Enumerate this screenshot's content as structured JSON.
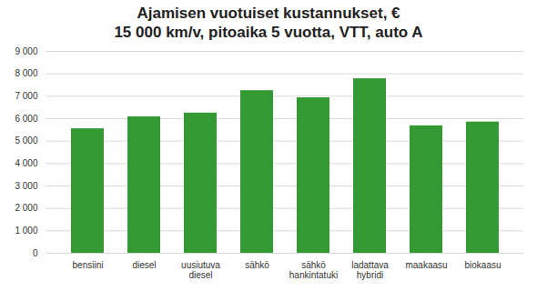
{
  "chart_data": {
    "type": "bar",
    "title": [
      "Ajamisen vuotuiset kustannukset, €",
      "15 000 km/v, pitoaika 5 vuotta, VTT, auto A"
    ],
    "categories": [
      "bensiini",
      "diesel",
      "uusiutuva diesel",
      "sähkö",
      "sähkö hankintatuki",
      "ladattava hybridi",
      "maakaasu",
      "biokaasu"
    ],
    "values": [
      5550,
      6080,
      6250,
      7250,
      6930,
      7780,
      5680,
      5850
    ],
    "color": "#339933",
    "ylim": [
      0,
      9000
    ],
    "yticks": [
      0,
      {
        "value": 1000,
        "label": "1 000"
      },
      {
        "value": 2000,
        "label": "2 000"
      },
      {
        "value": 3000,
        "label": "3 000"
      },
      {
        "value": 4000,
        "label": "4 000"
      },
      {
        "value": 5000,
        "label": "5 000"
      },
      {
        "value": 6000,
        "label": "6 000"
      },
      {
        "value": 7000,
        "label": "7 000"
      },
      {
        "value": 8000,
        "label": "8 000"
      },
      {
        "value": 9000,
        "label": "9 000"
      }
    ],
    "grid": true
  }
}
